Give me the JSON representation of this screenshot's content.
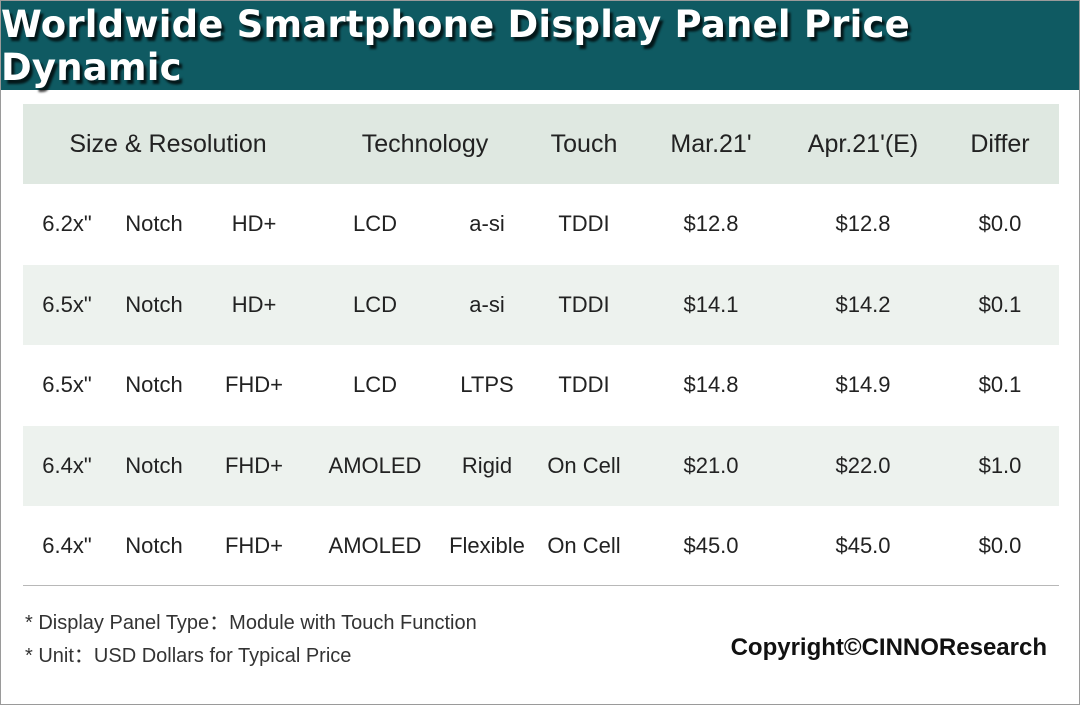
{
  "title": "Worldwide Smartphone Display Panel Price Dynamic",
  "chart_data": {
    "type": "table",
    "headers": {
      "size_resolution": "Size & Resolution",
      "technology": "Technology",
      "touch": "Touch",
      "mar21": "Mar.21'",
      "apr21e": "Apr.21'(E)",
      "differ": "Differ"
    },
    "rows": [
      {
        "size": "6.2x\"",
        "form": "Notch",
        "resolution": "HD+",
        "panel": "LCD",
        "backplane": "a-si",
        "touch": "TDDI",
        "mar21": "$12.8",
        "apr21e": "$12.8",
        "differ": "$0.0"
      },
      {
        "size": "6.5x\"",
        "form": "Notch",
        "resolution": "HD+",
        "panel": "LCD",
        "backplane": "a-si",
        "touch": "TDDI",
        "mar21": "$14.1",
        "apr21e": "$14.2",
        "differ": "$0.1"
      },
      {
        "size": "6.5x\"",
        "form": "Notch",
        "resolution": "FHD+",
        "panel": "LCD",
        "backplane": "LTPS",
        "touch": "TDDI",
        "mar21": "$14.8",
        "apr21e": "$14.9",
        "differ": "$0.1"
      },
      {
        "size": "6.4x\"",
        "form": "Notch",
        "resolution": "FHD+",
        "panel": "AMOLED",
        "backplane": "Rigid",
        "touch": "On Cell",
        "mar21": "$21.0",
        "apr21e": "$22.0",
        "differ": "$1.0"
      },
      {
        "size": "6.4x\"",
        "form": "Notch",
        "resolution": "FHD+",
        "panel": "AMOLED",
        "backplane": "Flexible",
        "touch": "On Cell",
        "mar21": "$45.0",
        "apr21e": "$45.0",
        "differ": "$0.0"
      }
    ]
  },
  "notes": [
    "* Display Panel Type：Module with Touch Function",
    "* Unit：USD Dollars for Typical Price"
  ],
  "copyright": "Copyright©CINNOResearch",
  "colors": {
    "banner": "#0f5a62",
    "header_row": "#dfe8e1",
    "shaded_row": "#edf2ee",
    "title_text": "#ffffff"
  }
}
